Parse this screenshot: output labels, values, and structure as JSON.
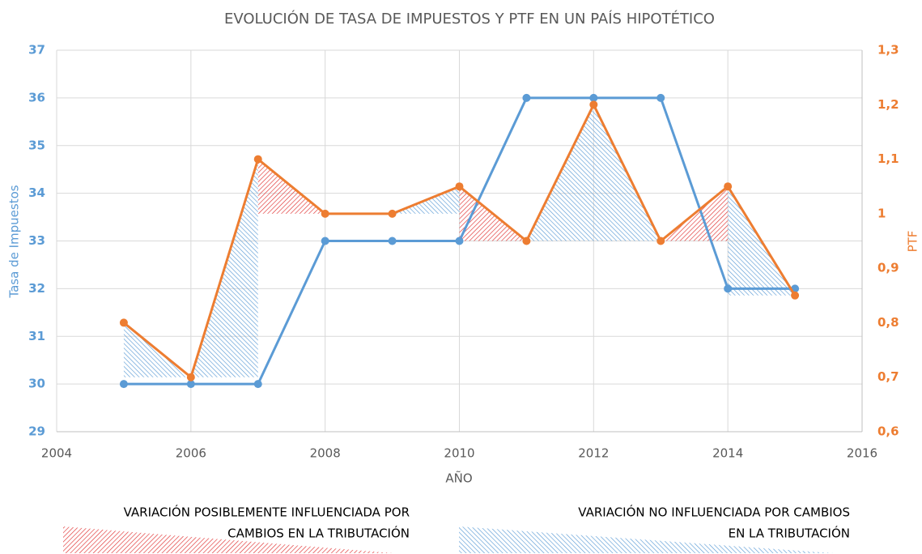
{
  "chart_data": {
    "type": "line",
    "title": "EVOLUCIÓN  DE TASA DE IMPUESTOS Y PTF EN UN PAÍS HIPOTÉTICO",
    "xlabel": "AÑO",
    "x": [
      2005,
      2006,
      2007,
      2008,
      2009,
      2010,
      2011,
      2012,
      2013,
      2014,
      2015
    ],
    "series": [
      {
        "name": "Tasa de Impuestos",
        "color": "#5b9bd5",
        "values": [
          30,
          30,
          30,
          33,
          33,
          33,
          36,
          36,
          36,
          32,
          32
        ]
      },
      {
        "name": "PTF",
        "color": "#ed7d31",
        "axis": "y2",
        "values": [
          0.8,
          0.7,
          1.1,
          1.0,
          1.0,
          1.05,
          0.95,
          1.2,
          0.95,
          1.05,
          0.85
        ]
      }
    ],
    "xlim": [
      2004,
      2016
    ],
    "xticks": [
      2004,
      2006,
      2008,
      2010,
      2012,
      2014,
      2016
    ],
    "ylim": [
      29,
      37
    ],
    "yticks": [
      29,
      30,
      31,
      32,
      33,
      34,
      35,
      36,
      37
    ],
    "y2lim": [
      0.6,
      1.3
    ],
    "y2ticks": [
      {
        "value": 0.6,
        "label": "0,6"
      },
      {
        "value": 0.7,
        "label": "0,7"
      },
      {
        "value": 0.8,
        "label": "0,8"
      },
      {
        "value": 0.9,
        "label": "0,9"
      },
      1,
      {
        "value": 1.1,
        "label": "1,1"
      },
      {
        "value": 1.2,
        "label": "1,2"
      },
      {
        "value": 1.3,
        "label": "1,3"
      }
    ],
    "grid": true,
    "shade_legend": [
      {
        "lines": [
          "VARIACIÓN POSIBLEMENTE INFLUENCIADA POR",
          "CAMBIOS EN LA TRIBUTACIÓN"
        ],
        "color": "#e03030"
      },
      {
        "lines": [
          "VARIACIÓN NO INFLUENCIADA POR CAMBIOS",
          "EN LA TRIBUTACIÓN"
        ],
        "color": "#5b9bd5"
      }
    ]
  }
}
